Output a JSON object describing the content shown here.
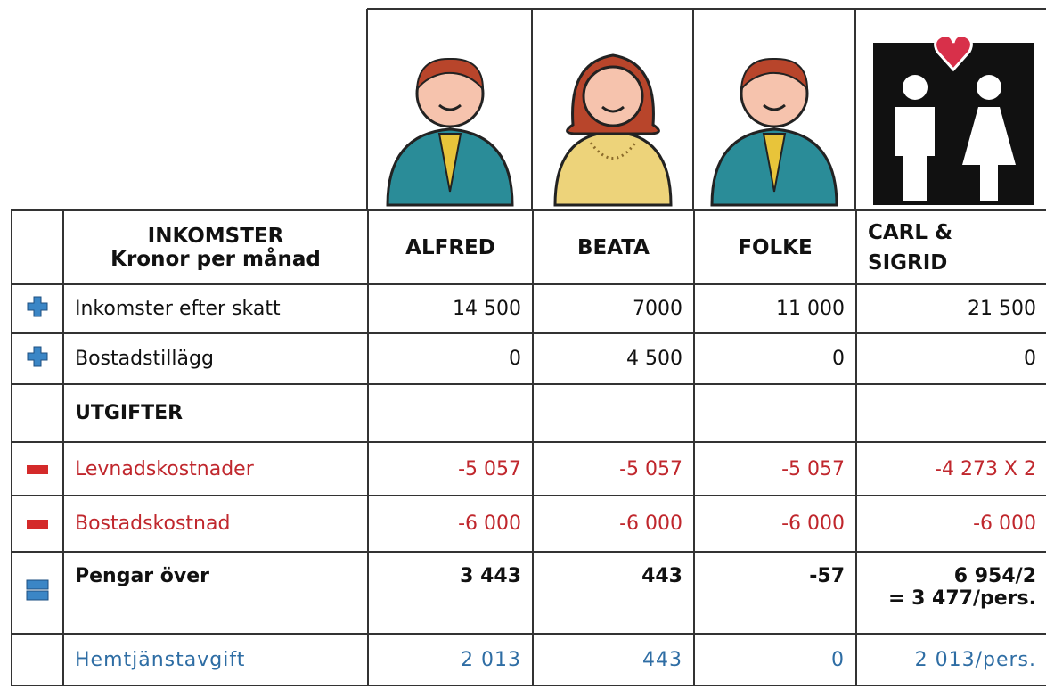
{
  "header": {
    "title": "INKOMSTER",
    "subtitle": "Kronor per månad",
    "columns": [
      "ALFRED",
      "BEATA",
      "FOLKE",
      "CARL & SIGRID"
    ]
  },
  "rows": [
    {
      "label": "Inkomster efter skatt",
      "cells": [
        "14 500",
        "7000",
        "11 000",
        "21 500"
      ]
    },
    {
      "label": "Bostadstillägg",
      "cells": [
        "0",
        "4 500",
        "0",
        "0"
      ]
    },
    {
      "label": "UTGIFTER"
    },
    {
      "label": "Levnadskostnader",
      "cells": [
        "-5 057",
        "-5 057",
        "-5 057",
        "-4 273 X 2"
      ]
    },
    {
      "label": "Bostadskostnad",
      "cells": [
        "-6 000",
        "-6 000",
        "-6 000",
        "-6 000"
      ]
    },
    {
      "label": "Pengar över",
      "cells": [
        "3 443",
        "443",
        "-57",
        "6 954/2"
      ],
      "note": "= 3 477/pers."
    },
    {
      "label": "Hemtjänstavgift",
      "cells": [
        "2 013",
        "443",
        "0",
        "2 013/pers."
      ]
    }
  ]
}
